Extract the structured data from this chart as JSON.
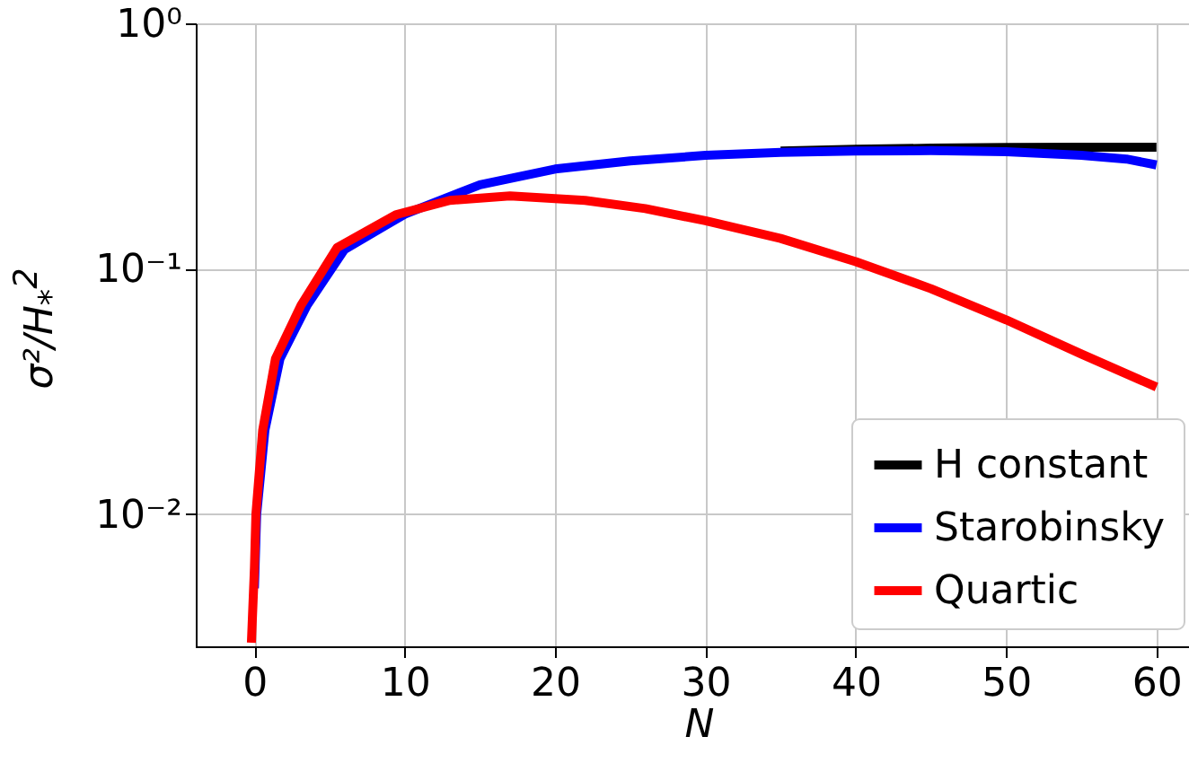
{
  "chart_data": {
    "type": "line",
    "xlabel": "N",
    "ylabel": "σ²/H$_{*}$$^{2}$",
    "log": "y",
    "grid": true,
    "legend": "bottom right",
    "line_style": "solid",
    "marker": "none",
    "xlim": [
      -3.9,
      63
    ],
    "xticks": [
      0,
      10,
      20,
      30,
      40,
      50,
      60
    ],
    "ylim": [
      0.0029,
      1
    ],
    "yticks": [
      {
        "value": 1,
        "label": "10⁰"
      },
      {
        "value": 0.1,
        "label": "10⁻¹"
      },
      {
        "value": 0.01,
        "label": "10⁻²"
      }
    ],
    "series": [
      {
        "name": "H constant",
        "color": "#000000",
        "x": [
          35,
          40,
          45,
          50,
          55,
          60
        ],
        "values": [
          0.302,
          0.307,
          0.31,
          0.312,
          0.313,
          0.313
        ]
      },
      {
        "name": "Starobinsky",
        "color": "#0000ff",
        "x": [
          0,
          0.15,
          0.7,
          1.7,
          3.5,
          6,
          10,
          15,
          20,
          25,
          30,
          35,
          40,
          45,
          50,
          55,
          58,
          60
        ],
        "values": [
          0.005,
          0.01,
          0.022,
          0.043,
          0.071,
          0.12,
          0.167,
          0.22,
          0.255,
          0.275,
          0.29,
          0.298,
          0.302,
          0.303,
          0.3,
          0.29,
          0.28,
          0.265
        ]
      },
      {
        "name": "Quartic",
        "color": "#ff0000",
        "x": [
          -0.2,
          0,
          0.1,
          0.55,
          1.4,
          3.1,
          5.5,
          9.4,
          13,
          17,
          22,
          26,
          30,
          35,
          40,
          45,
          50,
          55,
          60
        ],
        "values": [
          0.003,
          0.006,
          0.01,
          0.022,
          0.043,
          0.071,
          0.122,
          0.166,
          0.19,
          0.198,
          0.19,
          0.176,
          0.157,
          0.133,
          0.107,
          0.083,
          0.062,
          0.045,
          0.033
        ]
      }
    ]
  }
}
